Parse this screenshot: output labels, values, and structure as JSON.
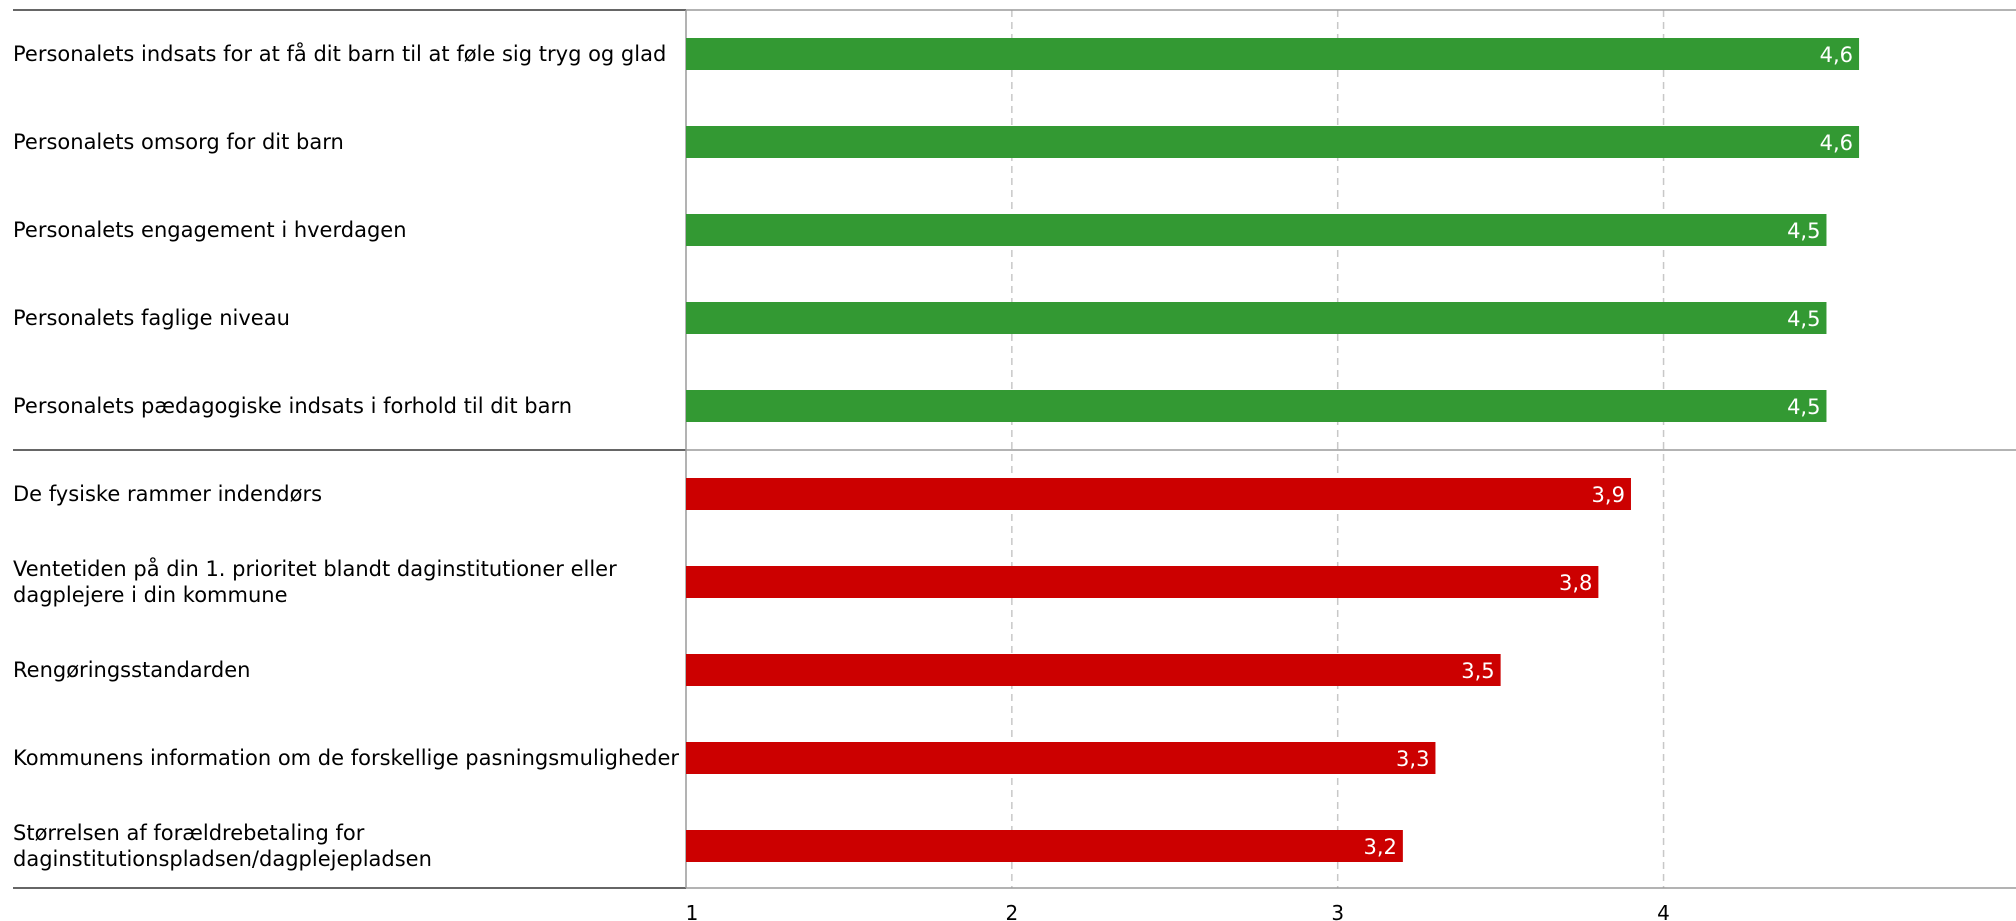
{
  "chart_data": {
    "type": "bar",
    "orientation": "horizontal",
    "xlim": [
      1,
      5
    ],
    "x_ticks": [
      1,
      2,
      3,
      4
    ],
    "x_tick_labels": [
      "1",
      "2",
      "3",
      "4"
    ],
    "grid": "vertical dashed",
    "groups": [
      {
        "color": "#339933",
        "categories": [
          "Personalets indsats for at få dit barn til at føle sig tryg og glad",
          "Personalets omsorg for dit barn",
          "Personalets engagement i hverdagen",
          "Personalets faglige niveau",
          "Personalets pædagogiske indsats i forhold til dit barn"
        ],
        "values": [
          4.6,
          4.6,
          4.5,
          4.5,
          4.5
        ],
        "value_labels": [
          "4,6",
          "4,6",
          "4,5",
          "4,5",
          "4,5"
        ]
      },
      {
        "color": "#cc0000",
        "categories": [
          "De fysiske rammer indendørs",
          "Ventetiden på din 1. prioritet blandt daginstitutioner eller dagplejere i din kommune",
          "Rengøringsstandarden",
          "Kommunens information om de forskellige pasningsmuligheder",
          "Størrelsen af forældrebetaling for daginstitutionspladsen/dagplejepladsen"
        ],
        "values": [
          3.9,
          3.8,
          3.5,
          3.3,
          3.2
        ],
        "value_labels": [
          "3,9",
          "3,8",
          "3,5",
          "3,3",
          "3,2"
        ]
      }
    ]
  }
}
